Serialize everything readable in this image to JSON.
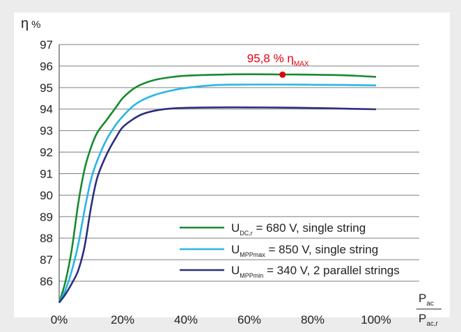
{
  "chart_data": {
    "type": "line",
    "ylabel": "η",
    "ylabel_unit": "%",
    "xlabel_numerator": "P",
    "xlabel_numerator_sub": "ac",
    "xlabel_denominator": "P",
    "xlabel_denominator_sub": "ac,r",
    "ylim": [
      85,
      97
    ],
    "y_ticks": [
      86,
      87,
      88,
      89,
      90,
      91,
      92,
      93,
      94,
      95,
      96,
      97
    ],
    "xlim": [
      0,
      100
    ],
    "x_ticks": [
      {
        "value": 0,
        "label": "0%"
      },
      {
        "value": 20,
        "label": "20%"
      },
      {
        "value": 40,
        "label": "40%"
      },
      {
        "value": 60,
        "label": "60%"
      },
      {
        "value": 80,
        "label": "80%"
      },
      {
        "value": 100,
        "label": "100%"
      }
    ],
    "grid": "horizontal",
    "legend_placement": "bottom-right",
    "series": [
      {
        "color": "#168a2e",
        "legend": {
          "main": "U",
          "sub": "DC,r",
          "rest": " = 680 V, single string"
        },
        "points": [
          [
            0,
            85
          ],
          [
            2,
            86
          ],
          [
            4,
            87.5
          ],
          [
            6,
            89.6
          ],
          [
            8,
            91.2
          ],
          [
            10,
            92.2
          ],
          [
            12,
            92.9
          ],
          [
            15,
            93.5
          ],
          [
            18,
            94.1
          ],
          [
            20,
            94.5
          ],
          [
            23,
            94.9
          ],
          [
            26,
            95.15
          ],
          [
            30,
            95.35
          ],
          [
            35,
            95.48
          ],
          [
            40,
            95.55
          ],
          [
            50,
            95.6
          ],
          [
            60,
            95.62
          ],
          [
            70,
            95.61
          ],
          [
            80,
            95.6
          ],
          [
            90,
            95.57
          ],
          [
            100,
            95.5
          ]
        ]
      },
      {
        "color": "#29b5e6",
        "legend": {
          "main": "U",
          "sub": "MPPmax",
          "rest": " = 850 V, single string"
        },
        "points": [
          [
            0,
            85
          ],
          [
            2,
            85.6
          ],
          [
            4,
            86.5
          ],
          [
            6,
            87.7
          ],
          [
            8,
            89.3
          ],
          [
            10,
            90.7
          ],
          [
            12,
            91.6
          ],
          [
            15,
            92.6
          ],
          [
            18,
            93.3
          ],
          [
            20,
            93.65
          ],
          [
            23,
            94.1
          ],
          [
            26,
            94.4
          ],
          [
            30,
            94.65
          ],
          [
            35,
            94.85
          ],
          [
            40,
            94.98
          ],
          [
            50,
            95.12
          ],
          [
            60,
            95.14
          ],
          [
            70,
            95.14
          ],
          [
            80,
            95.13
          ],
          [
            90,
            95.12
          ],
          [
            100,
            95.1
          ]
        ]
      },
      {
        "color": "#2b2f7f",
        "legend": {
          "main": "U",
          "sub": "MPPmin",
          "rest": " = 340 V, 2 parallel strings"
        },
        "points": [
          [
            0,
            85
          ],
          [
            2,
            85.4
          ],
          [
            4,
            85.9
          ],
          [
            6,
            86.5
          ],
          [
            8,
            87.6
          ],
          [
            10,
            89.4
          ],
          [
            12,
            90.8
          ],
          [
            15,
            91.9
          ],
          [
            18,
            92.7
          ],
          [
            20,
            93.15
          ],
          [
            23,
            93.5
          ],
          [
            26,
            93.75
          ],
          [
            30,
            93.92
          ],
          [
            35,
            94.02
          ],
          [
            40,
            94.06
          ],
          [
            50,
            94.08
          ],
          [
            60,
            94.08
          ],
          [
            70,
            94.07
          ],
          [
            80,
            94.05
          ],
          [
            90,
            94.02
          ],
          [
            100,
            93.99
          ]
        ]
      }
    ],
    "annotation": {
      "x": 70.5,
      "y": 95.6,
      "text": "95,8 % η",
      "sub": "MAX",
      "color": "#e3000f"
    }
  }
}
